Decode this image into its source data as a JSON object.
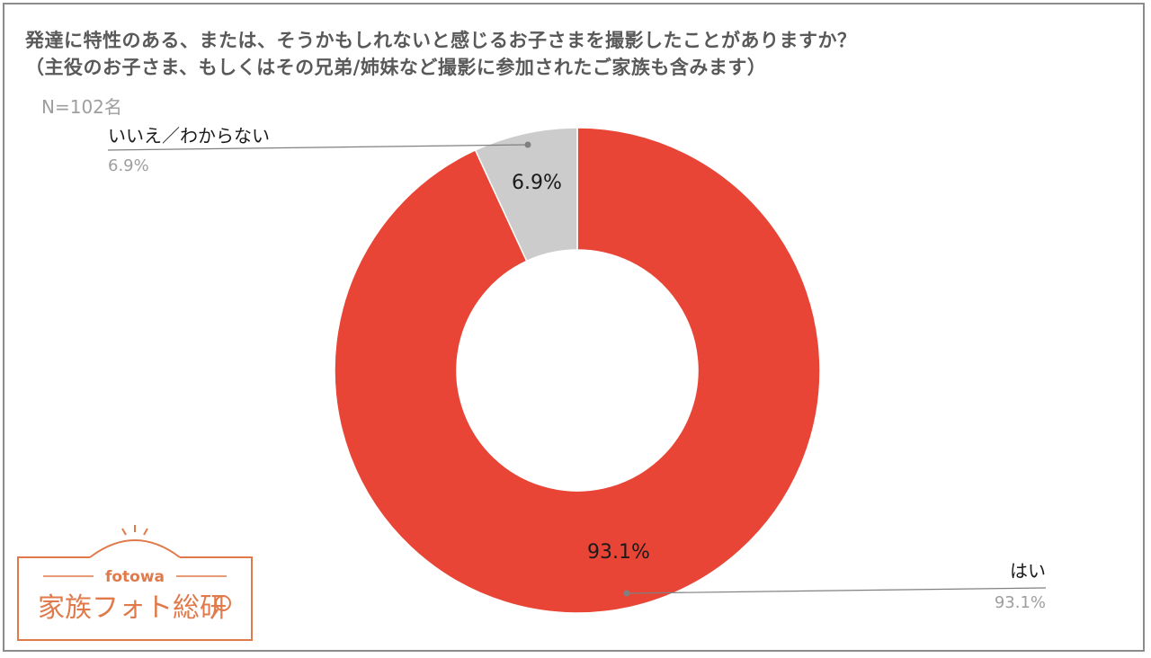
{
  "title": {
    "line1": "発達に特性のある、または、そうかもしれないと感じるお子さまを撮影したことがありますか？",
    "line2": "（主役のお子さま、もしくはその兄弟/姉妹など撮影に参加されたご家族も含みます）"
  },
  "sample_size": "N=102名",
  "logo": {
    "brand": "fotowa",
    "name": "家族フォト総研"
  },
  "colors": {
    "yes": "#e84536",
    "no": "#cccccc",
    "label_dark": "#1a1a1a",
    "label_grey": "#9e9e9e",
    "leader": "#808080",
    "logo": "#e07a4a"
  },
  "chart_data": {
    "type": "pie",
    "subtype": "donut",
    "slices": [
      {
        "name": "はい",
        "value": 93.1,
        "label": "93.1%"
      },
      {
        "name": "いいえ／わからない",
        "value": 6.9,
        "label": "6.9%"
      }
    ],
    "legend": "callouts"
  }
}
